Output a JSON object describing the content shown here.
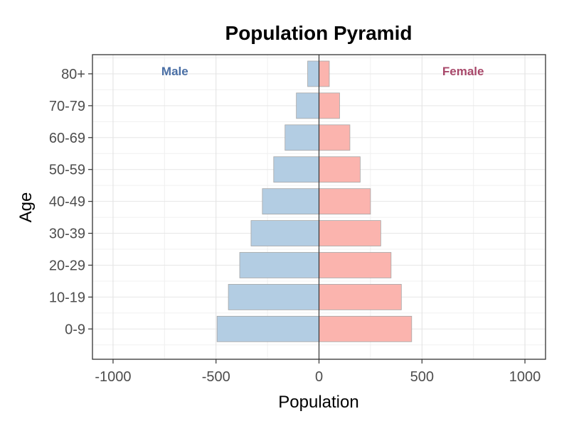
{
  "chart_data": {
    "type": "bar",
    "orientation": "horizontal",
    "title": "Population Pyramid",
    "xlabel": "Population",
    "ylabel": "Age",
    "categories": [
      "0-9",
      "10-19",
      "20-29",
      "30-39",
      "40-49",
      "50-59",
      "60-69",
      "70-79",
      "80+"
    ],
    "series": [
      {
        "name": "Male",
        "values": [
          -495,
          -440,
          -385,
          -330,
          -275,
          -220,
          -165,
          -110,
          -55
        ],
        "color": "#b3cde3"
      },
      {
        "name": "Female",
        "values": [
          450,
          400,
          350,
          300,
          250,
          200,
          150,
          100,
          50
        ],
        "color": "#fbb4ae"
      }
    ],
    "xlim": [
      -1100,
      1100
    ],
    "xticks": [
      -1000,
      -500,
      0,
      500,
      1000
    ],
    "xtick_labels": [
      "-1000",
      "-500",
      "0",
      "500",
      "1000"
    ],
    "grid": true,
    "annotations": [
      {
        "text": "Male",
        "color": "#4a6fa5"
      },
      {
        "text": "Female",
        "color": "#a8486a"
      }
    ]
  }
}
